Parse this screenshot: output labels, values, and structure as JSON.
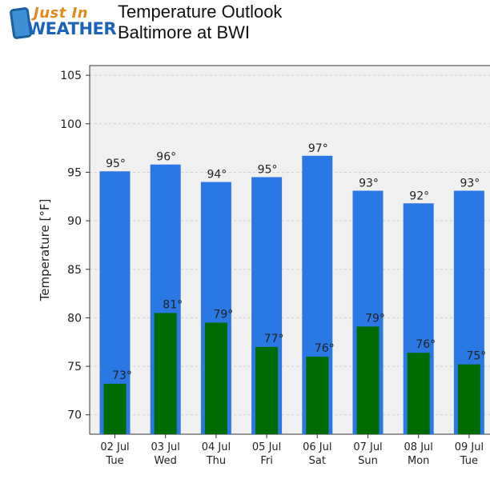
{
  "logo": {
    "line1": "Just In",
    "line2": "WEATHER"
  },
  "header": {
    "title_line1": "Temperature Outlook",
    "title_line2": "Baltimore at BWI"
  },
  "colors": {
    "high_bar": "#2a78e4",
    "low_bar": "#006b00",
    "plot_bg": "#f0f0f0",
    "grid": "#cfcfcf"
  },
  "chart_data": {
    "type": "bar",
    "title": "",
    "ylabel": "Temperature [°F]",
    "ylim": [
      68,
      106
    ],
    "yticks": [
      70,
      75,
      80,
      85,
      90,
      95,
      100,
      105
    ],
    "grid": true,
    "categories": [
      {
        "date": "02 Jul",
        "day": "Tue"
      },
      {
        "date": "03 Jul",
        "day": "Wed"
      },
      {
        "date": "04 Jul",
        "day": "Thu"
      },
      {
        "date": "05 Jul",
        "day": "Fri"
      },
      {
        "date": "06 Jul",
        "day": "Sat"
      },
      {
        "date": "07 Jul",
        "day": "Sun"
      },
      {
        "date": "08 Jul",
        "day": "Mon"
      },
      {
        "date": "09 Jul",
        "day": "Tue"
      }
    ],
    "series": [
      {
        "values": [
          95.1,
          95.8,
          94.0,
          94.5,
          96.7,
          93.1,
          91.8,
          93.1
        ],
        "labels": [
          "95°",
          "96°",
          "94°",
          "95°",
          "97°",
          "93°",
          "92°",
          "93°"
        ]
      },
      {
        "values": [
          73.2,
          80.5,
          79.5,
          77.0,
          76.0,
          79.1,
          76.4,
          75.2
        ],
        "labels": [
          "73°",
          "81°",
          "79°",
          "77°",
          "76°",
          "79°",
          "76°",
          "75°"
        ]
      }
    ]
  }
}
